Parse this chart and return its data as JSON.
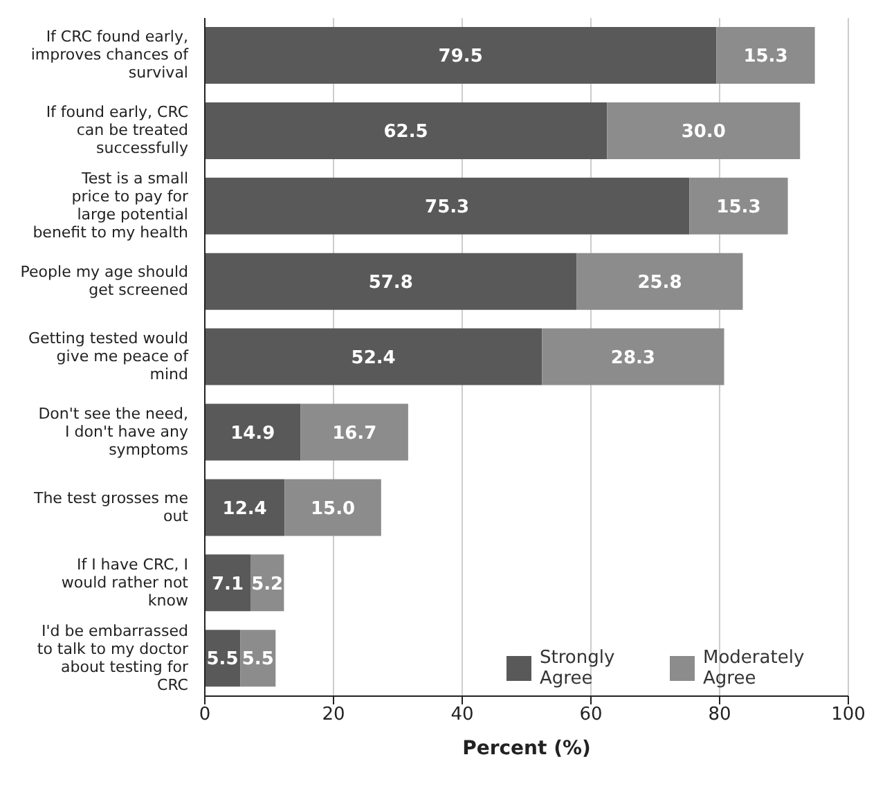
{
  "chart_data": {
    "type": "bar",
    "orientation": "horizontal",
    "stacked": true,
    "xlabel": "Percent (%)",
    "categories": [
      "If CRC found early, improves chances of survival",
      "If found early, CRC can be treated successfully",
      "Test is a small price to pay for large potential benefit to my health",
      "People my age should get screened",
      "Getting tested would give me peace of mind",
      "Don't see the need, I don't have any symptoms",
      "The test grosses me out",
      "If I have CRC, I would rather not know",
      "I'd be embarrassed to talk to my doctor about testing for CRC"
    ],
    "series": [
      {
        "name": "Strongly Agree",
        "color": "#595959",
        "values": [
          79.5,
          62.5,
          75.3,
          57.8,
          52.4,
          14.9,
          12.4,
          7.1,
          5.5
        ],
        "value_labels": [
          "79.5",
          "62.5",
          "75.3",
          "57.8",
          "52.4",
          "14.9",
          "12.4",
          "7.1",
          "5.5"
        ]
      },
      {
        "name": "Moderately Agree",
        "color": "#8c8c8c",
        "values": [
          15.3,
          30.0,
          15.3,
          25.8,
          28.3,
          16.7,
          15.0,
          5.2,
          5.5
        ],
        "value_labels": [
          "15.3",
          "30.0",
          "15.3",
          "25.8",
          "28.3",
          "16.7",
          "15.0",
          "5.2",
          "5.5"
        ]
      }
    ],
    "xlim": [
      0,
      100
    ],
    "xticks": [
      0,
      20,
      40,
      60,
      80,
      100
    ],
    "grid": "x",
    "legend": "bottom right"
  }
}
